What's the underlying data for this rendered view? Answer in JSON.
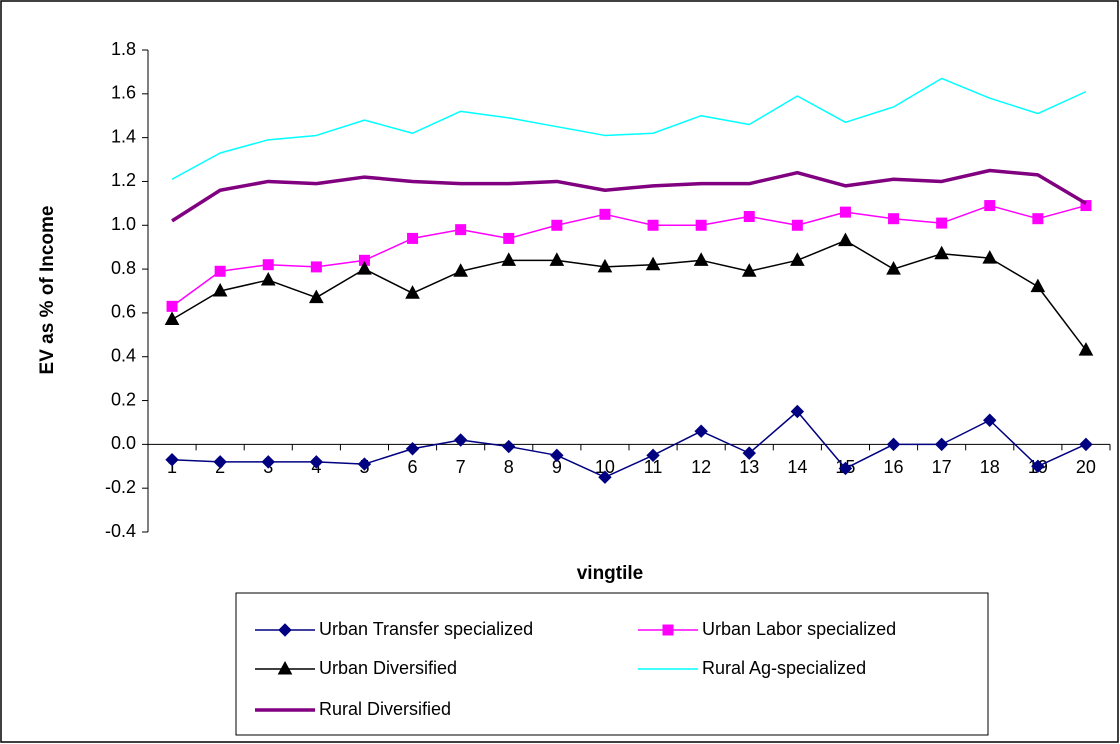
{
  "chart_data": {
    "type": "line",
    "xlabel": "vingtile",
    "ylabel": "EV as % of Income",
    "categories": [
      "1",
      "2",
      "3",
      "4",
      "5",
      "6",
      "7",
      "8",
      "9",
      "10",
      "11",
      "12",
      "13",
      "14",
      "15",
      "16",
      "17",
      "18",
      "19",
      "20"
    ],
    "ylim": [
      -0.4,
      1.8
    ],
    "yticks": [
      -0.4,
      -0.2,
      {
        "value": 0,
        "label": "0.0"
      },
      0.2,
      0.4,
      0.6,
      0.8,
      {
        "value": 1,
        "label": "1.0"
      },
      1.2,
      1.4,
      1.6,
      1.8
    ],
    "grid": false,
    "series": [
      {
        "name": "Urban Transfer specialized",
        "color": "#000080",
        "marker": "diamond",
        "width": 1.5,
        "values": [
          -0.07,
          -0.08,
          -0.08,
          -0.08,
          -0.09,
          -0.02,
          0.02,
          -0.01,
          -0.05,
          -0.15,
          -0.05,
          0.06,
          -0.04,
          0.15,
          -0.11,
          0.0,
          0.0,
          0.11,
          -0.1,
          0.0
        ]
      },
      {
        "name": "Urban Labor specialized",
        "color": "#ff00ff",
        "marker": "square",
        "width": 1.5,
        "values": [
          0.63,
          0.79,
          0.82,
          0.81,
          0.84,
          0.94,
          0.98,
          0.94,
          1.0,
          1.05,
          1.0,
          1.0,
          1.04,
          1.0,
          1.06,
          1.03,
          1.01,
          1.09,
          1.03,
          1.09
        ]
      },
      {
        "name": "Urban Diversified",
        "color": "#000000",
        "marker": "triangle",
        "width": 1.5,
        "values": [
          0.57,
          0.7,
          0.75,
          0.67,
          0.8,
          0.69,
          0.79,
          0.84,
          0.84,
          0.81,
          0.82,
          0.84,
          0.79,
          0.84,
          0.93,
          0.8,
          0.87,
          0.85,
          0.72,
          0.43
        ]
      },
      {
        "name": "Rural Ag-specialized",
        "color": "#00ffff",
        "marker": "none",
        "width": 1.5,
        "values": [
          1.21,
          1.33,
          1.39,
          1.41,
          1.48,
          1.42,
          1.52,
          1.49,
          1.45,
          1.41,
          1.42,
          1.5,
          1.46,
          1.59,
          1.47,
          1.54,
          1.67,
          1.58,
          1.51,
          1.61
        ]
      },
      {
        "name": "Rural Diversified",
        "color": "#800080",
        "marker": "none",
        "width": 3.5,
        "values": [
          1.02,
          1.16,
          1.2,
          1.19,
          1.22,
          1.2,
          1.19,
          1.19,
          1.2,
          1.16,
          1.18,
          1.19,
          1.19,
          1.24,
          1.18,
          1.21,
          1.2,
          1.25,
          1.23,
          1.1
        ]
      }
    ]
  }
}
